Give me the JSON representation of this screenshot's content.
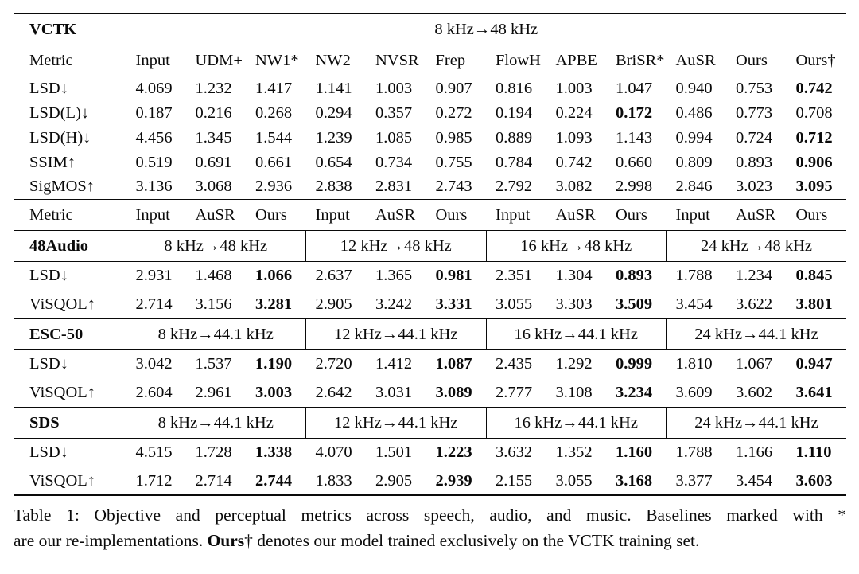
{
  "page": {
    "background": "#ffffff",
    "text_color": "#0a0a0a"
  },
  "table": {
    "vctk": {
      "dataset": "VCTK",
      "range_header": "8 kHz→48 kHz",
      "metric_header": {
        "label": "Metric",
        "columns": [
          "Input",
          "UDM+",
          "NW1*",
          "NW2",
          "NVSR",
          "Frep",
          "FlowH",
          "APBE",
          "BriSR*",
          "AuSR",
          "Ours",
          "Ours†"
        ]
      },
      "rows": [
        {
          "label": "LSD↓",
          "values": [
            "4.069",
            "1.232",
            "1.417",
            "1.141",
            "1.003",
            "0.907",
            "0.816",
            "1.003",
            "1.047",
            "0.940",
            "0.753",
            "0.742"
          ],
          "bold": [
            11
          ]
        },
        {
          "label": "LSD(L)↓",
          "values": [
            "0.187",
            "0.216",
            "0.268",
            "0.294",
            "0.357",
            "0.272",
            "0.194",
            "0.224",
            "0.172",
            "0.486",
            "0.773",
            "0.708"
          ],
          "bold": [
            8
          ]
        },
        {
          "label": "LSD(H)↓",
          "values": [
            "4.456",
            "1.345",
            "1.544",
            "1.239",
            "1.085",
            "0.985",
            "0.889",
            "1.093",
            "1.143",
            "0.994",
            "0.724",
            "0.712"
          ],
          "bold": [
            11
          ]
        },
        {
          "label": "SSIM↑",
          "values": [
            "0.519",
            "0.691",
            "0.661",
            "0.654",
            "0.734",
            "0.755",
            "0.784",
            "0.742",
            "0.660",
            "0.809",
            "0.893",
            "0.906"
          ],
          "bold": [
            11
          ]
        },
        {
          "label": "SigMOS↑",
          "values": [
            "3.136",
            "3.068",
            "2.936",
            "2.838",
            "2.831",
            "2.743",
            "2.792",
            "3.082",
            "2.998",
            "2.846",
            "3.023",
            "3.095"
          ],
          "bold": [
            11
          ]
        }
      ]
    },
    "group_metric_header": {
      "label": "Metric",
      "columns": [
        "Input",
        "AuSR",
        "Ours",
        "Input",
        "AuSR",
        "Ours",
        "Input",
        "AuSR",
        "Ours",
        "Input",
        "AuSR",
        "Ours"
      ]
    },
    "sections": [
      {
        "dataset": "48Audio",
        "ranges": [
          "8 kHz→48 kHz",
          "12 kHz→48 kHz",
          "16 kHz→48 kHz",
          "24 kHz→48 kHz"
        ],
        "rows": [
          {
            "label": "LSD↓",
            "values": [
              "2.931",
              "1.468",
              "1.066",
              "2.637",
              "1.365",
              "0.981",
              "2.351",
              "1.304",
              "0.893",
              "1.788",
              "1.234",
              "0.845"
            ],
            "bold": [
              2,
              5,
              8,
              11
            ]
          },
          {
            "label": "ViSQOL↑",
            "values": [
              "2.714",
              "3.156",
              "3.281",
              "2.905",
              "3.242",
              "3.331",
              "3.055",
              "3.303",
              "3.509",
              "3.454",
              "3.622",
              "3.801"
            ],
            "bold": [
              2,
              5,
              8,
              11
            ]
          }
        ]
      },
      {
        "dataset": "ESC-50",
        "ranges": [
          "8 kHz→44.1 kHz",
          "12 kHz→44.1 kHz",
          "16 kHz→44.1 kHz",
          "24 kHz→44.1 kHz"
        ],
        "rows": [
          {
            "label": "LSD↓",
            "values": [
              "3.042",
              "1.537",
              "1.190",
              "2.720",
              "1.412",
              "1.087",
              "2.435",
              "1.292",
              "0.999",
              "1.810",
              "1.067",
              "0.947"
            ],
            "bold": [
              2,
              5,
              8,
              11
            ]
          },
          {
            "label": "ViSQOL↑",
            "values": [
              "2.604",
              "2.961",
              "3.003",
              "2.642",
              "3.031",
              "3.089",
              "2.777",
              "3.108",
              "3.234",
              "3.609",
              "3.602",
              "3.641"
            ],
            "bold": [
              2,
              5,
              8,
              11
            ]
          }
        ]
      },
      {
        "dataset": "SDS",
        "ranges": [
          "8 kHz→44.1 kHz",
          "12 kHz→44.1 kHz",
          "16 kHz→44.1 kHz",
          "24 kHz→44.1 kHz"
        ],
        "rows": [
          {
            "label": "LSD↓",
            "values": [
              "4.515",
              "1.728",
              "1.338",
              "4.070",
              "1.501",
              "1.223",
              "3.632",
              "1.352",
              "1.160",
              "1.788",
              "1.166",
              "1.110"
            ],
            "bold": [
              2,
              5,
              8,
              11
            ]
          },
          {
            "label": "ViSQOL↑",
            "values": [
              "1.712",
              "2.714",
              "2.744",
              "1.833",
              "2.905",
              "2.939",
              "2.155",
              "3.055",
              "3.168",
              "3.377",
              "3.454",
              "3.603"
            ],
            "bold": [
              2,
              5,
              8,
              11
            ]
          }
        ]
      }
    ]
  },
  "caption": {
    "line1": "Table 1: Objective and perceptual metrics across speech, audio, and music. Baselines marked with *",
    "line2_pre": "are our re-implementations. ",
    "line2_bold": "Ours",
    "line2_post": "† denotes our model trained exclusively on the VCTK training set."
  }
}
